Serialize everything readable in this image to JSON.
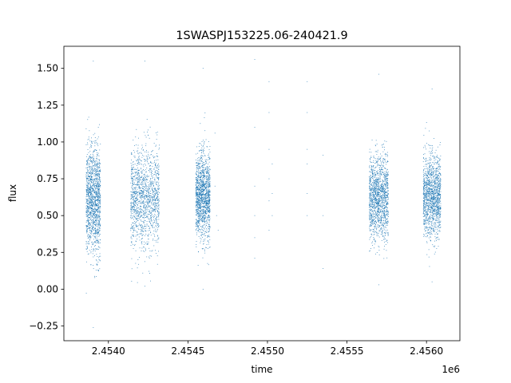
{
  "chart_data": {
    "type": "scatter",
    "title": "1SWASPJ153225.06-240421.9",
    "xlabel": "time",
    "ylabel": "flux",
    "x_offset_label": "1e6",
    "xlim": [
      2.45372,
      2.45621
    ],
    "ylim": [
      -0.35,
      1.65
    ],
    "x_ticks": [
      2.454,
      2.4545,
      2.455,
      2.4555,
      2.456
    ],
    "x_tick_labels": [
      "2.4540",
      "2.4545",
      "2.4550",
      "2.4555",
      "2.4560"
    ],
    "y_ticks": [
      -0.25,
      0.0,
      0.25,
      0.5,
      0.75,
      1.0,
      1.25,
      1.5
    ],
    "y_tick_labels": [
      "−0.25",
      "0.00",
      "0.25",
      "0.50",
      "0.75",
      "1.00",
      "1.25",
      "1.50"
    ],
    "grid": false,
    "marker_color": "#1f77b4",
    "series": [
      {
        "clusters": [
          {
            "x_range": [
              2.45386,
              2.45395
            ],
            "flux_center": 0.6,
            "flux_spread": 0.18,
            "flux_min": -0.26,
            "flux_max": 1.55
          },
          {
            "x_range": [
              2.45414,
              2.45432
            ],
            "flux_center": 0.62,
            "flux_spread": 0.17,
            "flux_min": 0.02,
            "flux_max": 1.55
          },
          {
            "x_range": [
              2.45455,
              2.45464
            ],
            "flux_center": 0.63,
            "flux_spread": 0.15,
            "flux_min": 0.0,
            "flux_max": 1.5
          },
          {
            "x_range": [
              2.45564,
              2.45576
            ],
            "flux_center": 0.62,
            "flux_spread": 0.14,
            "flux_min": 0.03,
            "flux_max": 1.46
          },
          {
            "x_range": [
              2.45598,
              2.45609
            ],
            "flux_center": 0.63,
            "flux_spread": 0.14,
            "flux_min": 0.05,
            "flux_max": 1.36
          }
        ],
        "scattered": [
          [
            2.45492,
            1.56
          ],
          [
            2.45492,
            1.1
          ],
          [
            2.45492,
            0.7
          ],
          [
            2.45492,
            0.5
          ],
          [
            2.45492,
            0.35
          ],
          [
            2.45492,
            0.21
          ],
          [
            2.45501,
            1.41
          ],
          [
            2.45501,
            1.2
          ],
          [
            2.45501,
            0.95
          ],
          [
            2.45501,
            0.75
          ],
          [
            2.45501,
            0.6
          ],
          [
            2.45501,
            0.4
          ],
          [
            2.45503,
            0.85
          ],
          [
            2.45503,
            0.65
          ],
          [
            2.45503,
            0.5
          ],
          [
            2.45525,
            1.41
          ],
          [
            2.45525,
            1.2
          ],
          [
            2.45525,
            0.95
          ],
          [
            2.45525,
            0.85
          ],
          [
            2.45525,
            0.65
          ],
          [
            2.45525,
            0.5
          ],
          [
            2.45535,
            0.91
          ],
          [
            2.45535,
            0.5
          ],
          [
            2.45535,
            0.14
          ],
          [
            2.45467,
            0.7
          ],
          [
            2.45468,
            0.5
          ],
          [
            2.45469,
            0.4
          ],
          [
            2.45467,
            1.06
          ]
        ]
      }
    ]
  }
}
